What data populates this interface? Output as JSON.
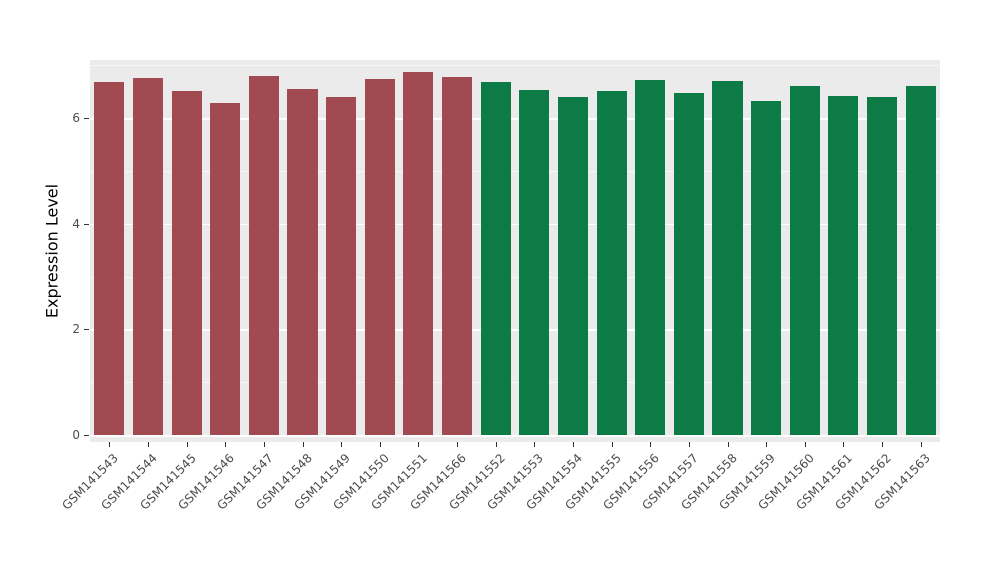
{
  "chart_data": {
    "type": "bar",
    "title": "",
    "xlabel": "",
    "ylabel": "Expression Level",
    "ylim": [
      0,
      7.1
    ],
    "yticks": [
      0,
      2,
      4,
      6
    ],
    "minor_gridlines": [
      1,
      3,
      5,
      7
    ],
    "grid": "on",
    "legend": "none",
    "panel_bg": "#EBEBEB",
    "grid_color": "#FFFFFF",
    "categories": [
      "GSM141543",
      "GSM141544",
      "GSM141545",
      "GSM141546",
      "GSM141547",
      "GSM141548",
      "GSM141549",
      "GSM141550",
      "GSM141551",
      "GSM141566",
      "GSM141552",
      "GSM141553",
      "GSM141554",
      "GSM141555",
      "GSM141556",
      "GSM141557",
      "GSM141558",
      "GSM141559",
      "GSM141560",
      "GSM141561",
      "GSM141562",
      "GSM141563"
    ],
    "values": [
      6.68,
      6.75,
      6.52,
      6.28,
      6.8,
      6.55,
      6.4,
      6.74,
      6.88,
      6.77,
      6.68,
      6.54,
      6.4,
      6.52,
      6.72,
      6.48,
      6.7,
      6.32,
      6.6,
      6.42,
      6.4,
      6.6
    ],
    "colors": [
      "#A14A52",
      "#0C7B45"
    ],
    "group_split": 10
  }
}
